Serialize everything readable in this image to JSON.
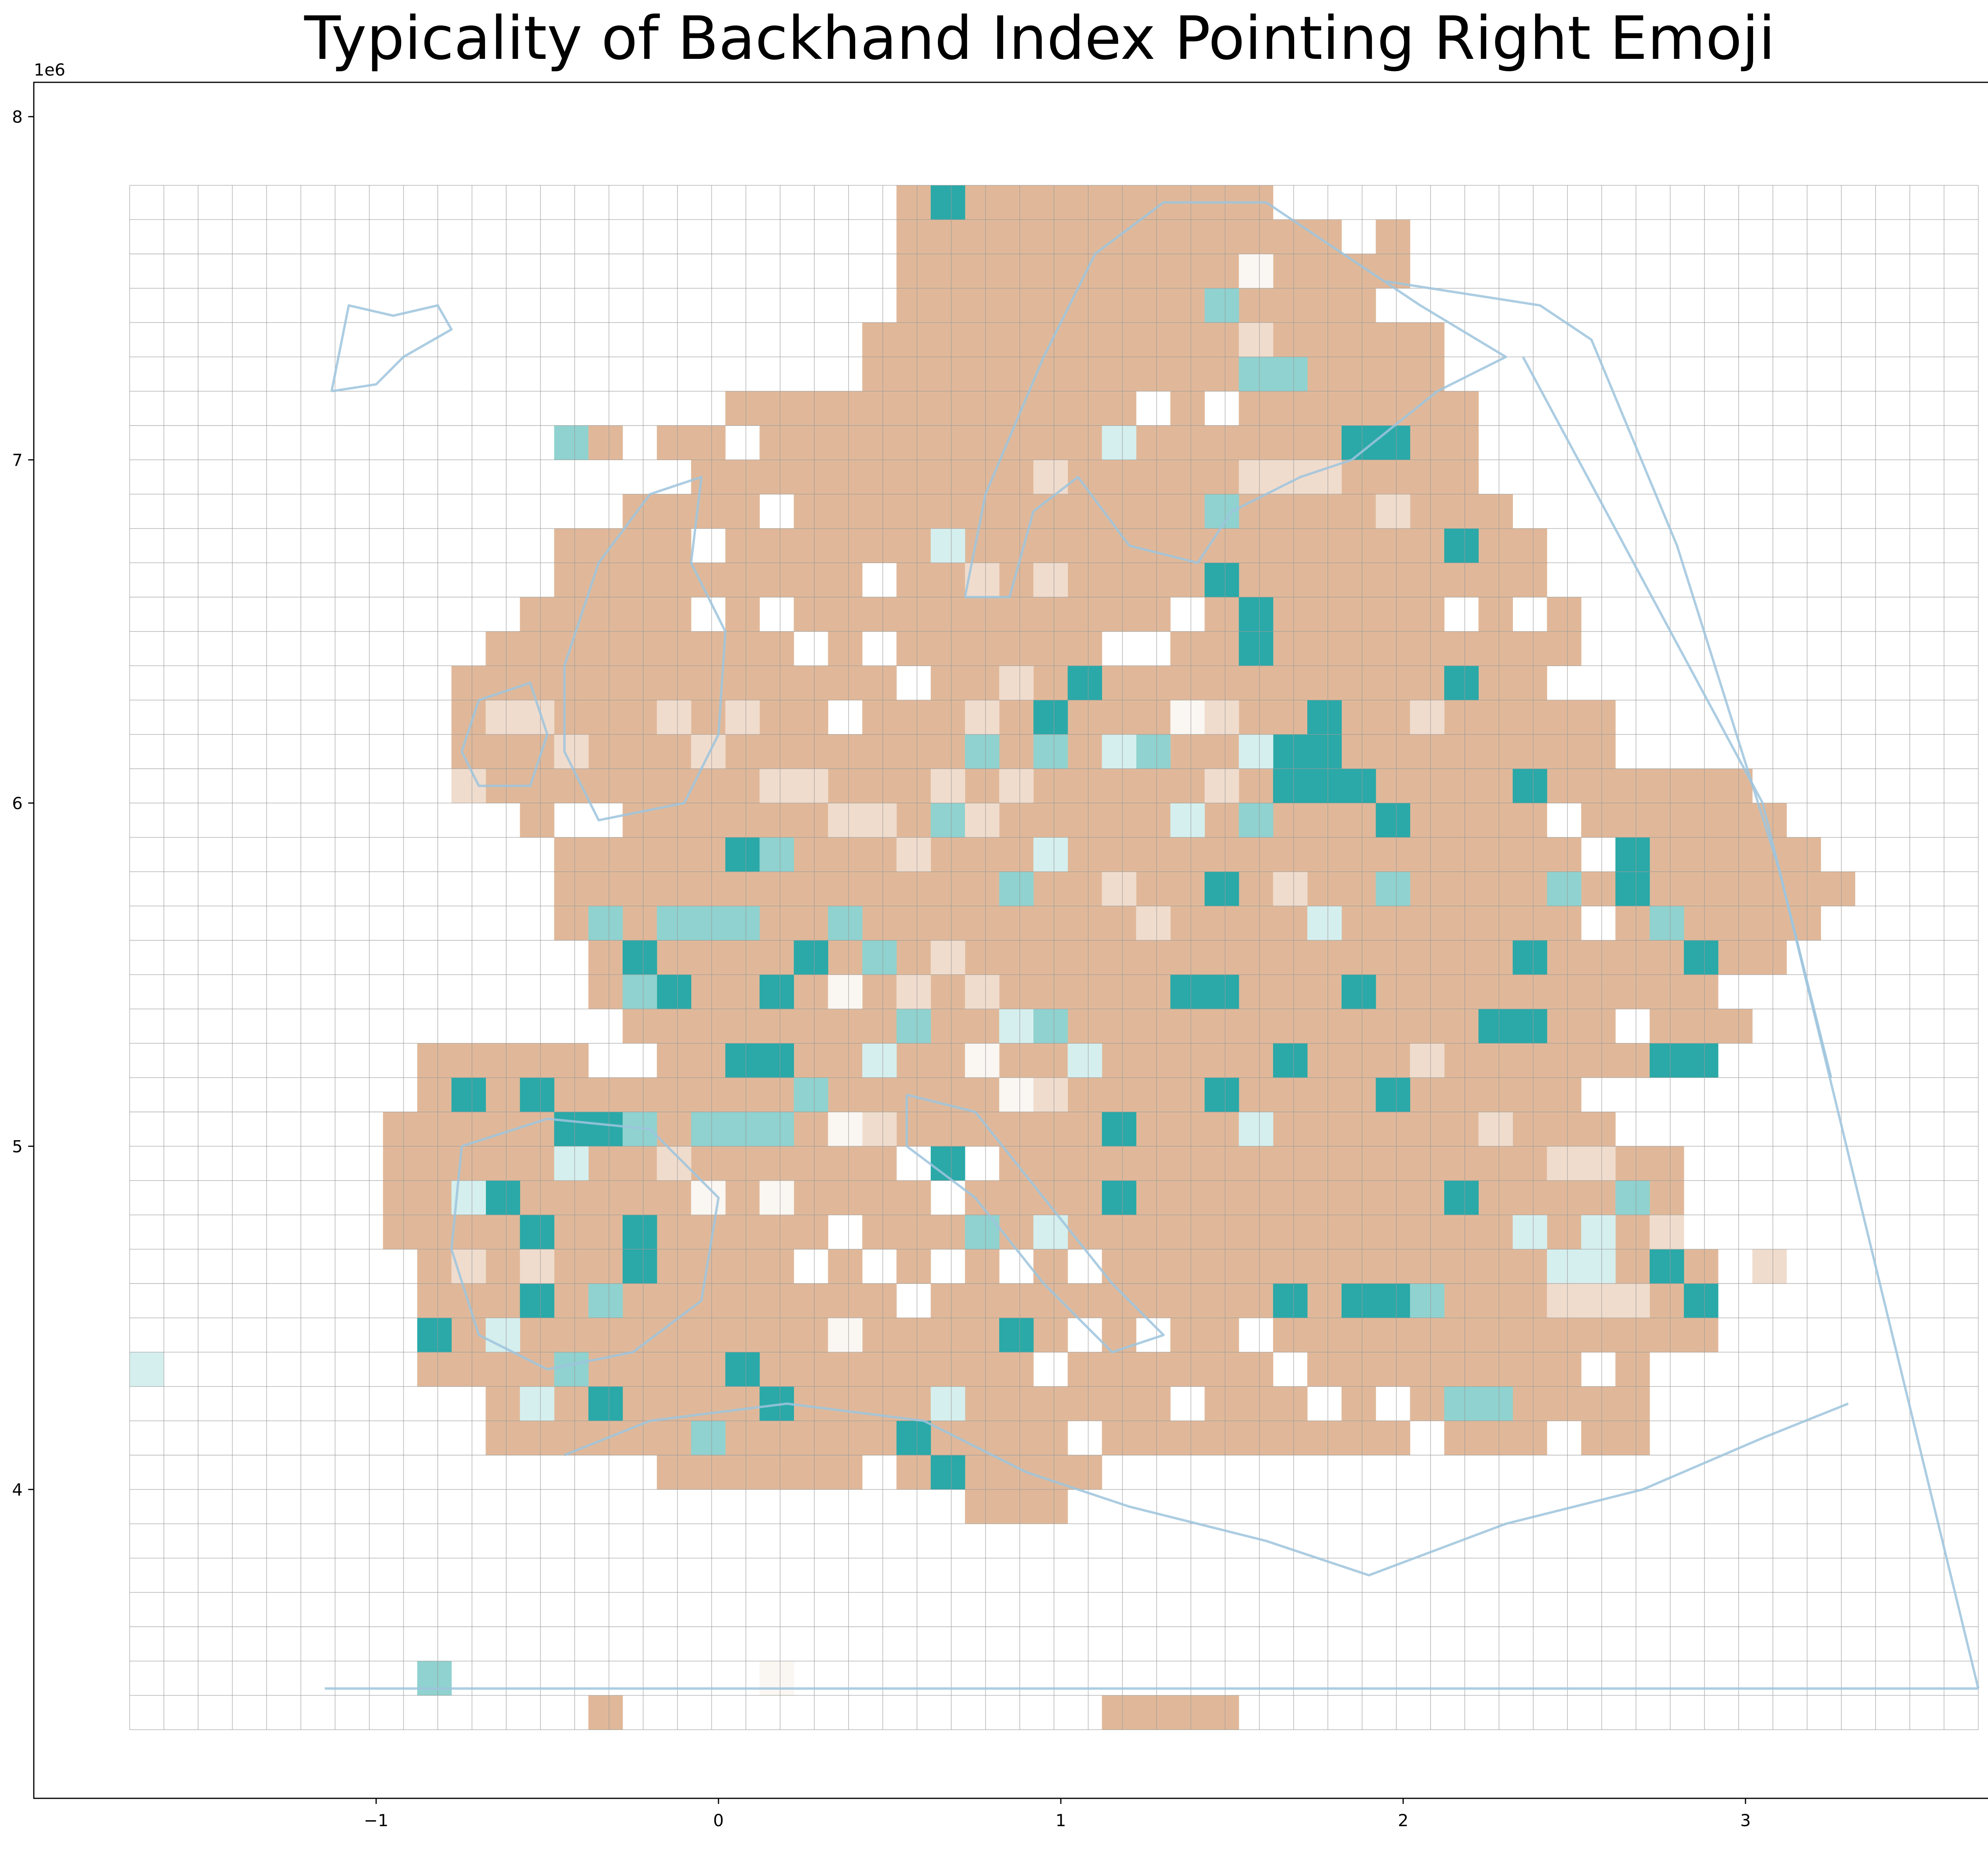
{
  "title": "Typicality of Backhand Index Pointing Right Emoji",
  "axes": {
    "x_ticks": [
      {
        "value": -1,
        "label": "−1"
      },
      {
        "value": 0,
        "label": "0"
      },
      {
        "value": 1,
        "label": "1"
      },
      {
        "value": 2,
        "label": "2"
      },
      {
        "value": 3,
        "label": "3"
      }
    ],
    "y_ticks": [
      {
        "value": 4,
        "label": "4"
      },
      {
        "value": 5,
        "label": "5"
      },
      {
        "value": 6,
        "label": "6"
      },
      {
        "value": 7,
        "label": "7"
      },
      {
        "value": 8,
        "label": "8"
      }
    ],
    "x_offset_label": "1e6",
    "y_offset_label": "1e6",
    "xlim": [
      -2.0,
      3.9
    ],
    "ylim": [
      3.1,
      8.1
    ]
  },
  "colors": {
    "high_typicality": "#2aa9a8",
    "mid_teal": "#8fd2cf",
    "light_teal": "#d5efee",
    "neutral": "#faf6f2",
    "light_tan": "#f0dccd",
    "low_typicality": "#e0b899",
    "grid": "#9a9a9a",
    "coastline": "#9ec4dd",
    "border": "#6a9ec4"
  },
  "chart_data": {
    "type": "heatmap",
    "title": "Typicality of Backhand Index Pointing Right Emoji",
    "cell_size": 0.1,
    "grid_extent": {
      "x": [
        -1.72,
        3.68
      ],
      "y": [
        3.3,
        7.8
      ]
    },
    "color_scale": [
      "#e0b899",
      "#f0dccd",
      "#faf6f2",
      "#d5efee",
      "#8fd2cf",
      "#2aa9a8"
    ],
    "cells": [
      {
        "x": 0.62,
        "y": 7.7,
        "v": 0.8
      },
      {
        "x": 0.92,
        "y": 7.6,
        "v": -1
      },
      {
        "x": 1.22,
        "y": 7.6,
        "v": -1
      },
      {
        "x": 1.52,
        "y": 7.5,
        "v": 0
      },
      {
        "x": 0.72,
        "y": 7.4,
        "v": -1
      },
      {
        "x": 1.02,
        "y": 7.3,
        "v": -1
      },
      {
        "x": 1.42,
        "y": 7.4,
        "v": 0.6
      },
      {
        "x": 1.52,
        "y": 7.3,
        "v": -0.3
      },
      {
        "x": 1.62,
        "y": 7.2,
        "v": 0.5
      },
      {
        "x": 1.52,
        "y": 7.2,
        "v": 0.5
      },
      {
        "x": 0.12,
        "y": 7.1,
        "v": -1
      },
      {
        "x": 0.52,
        "y": 7.0,
        "v": -1
      },
      {
        "x": 1.12,
        "y": 7.0,
        "v": 0.3
      },
      {
        "x": 1.92,
        "y": 7.0,
        "v": 1
      },
      {
        "x": 1.82,
        "y": 7.0,
        "v": 0.8
      },
      {
        "x": 0.92,
        "y": 6.9,
        "v": -0.5
      },
      {
        "x": -0.48,
        "y": 7.0,
        "v": 0.6
      },
      {
        "x": -0.38,
        "y": 7.0,
        "v": -1
      },
      {
        "x": -0.08,
        "y": 6.9,
        "v": -1
      },
      {
        "x": 1.42,
        "y": 6.8,
        "v": 0.6
      },
      {
        "x": 0.62,
        "y": 6.7,
        "v": 0.3
      },
      {
        "x": 2.12,
        "y": 6.7,
        "v": 0.8
      },
      {
        "x": 1.42,
        "y": 6.6,
        "v": 1
      },
      {
        "x": 1.52,
        "y": 6.5,
        "v": 1
      },
      {
        "x": 1.52,
        "y": 6.4,
        "v": 1
      },
      {
        "x": 2.12,
        "y": 6.3,
        "v": 1
      },
      {
        "x": 1.02,
        "y": 6.3,
        "v": 0.8
      },
      {
        "x": 0.92,
        "y": 6.2,
        "v": 0.8
      },
      {
        "x": 1.72,
        "y": 6.2,
        "v": 1
      },
      {
        "x": 1.62,
        "y": 6.1,
        "v": 1
      },
      {
        "x": 1.72,
        "y": 6.1,
        "v": 1
      },
      {
        "x": 1.62,
        "y": 6.0,
        "v": 1
      },
      {
        "x": 1.72,
        "y": 6.0,
        "v": 0.8
      },
      {
        "x": 2.32,
        "y": 6.0,
        "v": 0.8
      },
      {
        "x": 1.92,
        "y": 5.9,
        "v": 1
      },
      {
        "x": 0.02,
        "y": 5.8,
        "v": 0.8
      },
      {
        "x": 0.12,
        "y": 5.8,
        "v": 0.7
      },
      {
        "x": 2.62,
        "y": 5.8,
        "v": 1
      },
      {
        "x": 2.62,
        "y": 5.7,
        "v": 1
      },
      {
        "x": 1.42,
        "y": 5.7,
        "v": 1
      },
      {
        "x": -0.28,
        "y": 5.5,
        "v": 1
      },
      {
        "x": 0.22,
        "y": 5.5,
        "v": 0.8
      },
      {
        "x": 2.32,
        "y": 5.5,
        "v": 1
      },
      {
        "x": 2.82,
        "y": 5.5,
        "v": 1
      },
      {
        "x": -0.18,
        "y": 5.4,
        "v": 1
      },
      {
        "x": 0.12,
        "y": 5.4,
        "v": 1
      },
      {
        "x": 1.32,
        "y": 5.4,
        "v": 1
      },
      {
        "x": 1.42,
        "y": 5.4,
        "v": 1
      },
      {
        "x": 1.82,
        "y": 5.4,
        "v": 1
      },
      {
        "x": 2.22,
        "y": 5.3,
        "v": 1
      },
      {
        "x": 2.32,
        "y": 5.3,
        "v": 1
      },
      {
        "x": 2.72,
        "y": 5.2,
        "v": 1
      },
      {
        "x": 2.82,
        "y": 5.2,
        "v": 1
      },
      {
        "x": 1.42,
        "y": 5.1,
        "v": 1
      },
      {
        "x": 1.92,
        "y": 5.1,
        "v": 1
      },
      {
        "x": 1.12,
        "y": 5.0,
        "v": 1
      },
      {
        "x": 2.22,
        "y": 5.0,
        "v": 1
      },
      {
        "x": 0.62,
        "y": 4.9,
        "v": 1
      },
      {
        "x": 1.12,
        "y": 4.8,
        "v": 1
      },
      {
        "x": 2.72,
        "y": 4.6,
        "v": 1
      },
      {
        "x": 2.82,
        "y": 4.5,
        "v": 1
      },
      {
        "x": -0.88,
        "y": 4.4,
        "v": 1
      },
      {
        "x": 0.82,
        "y": 4.4,
        "v": 1
      },
      {
        "x": -0.38,
        "y": 4.2,
        "v": 1
      },
      {
        "x": 0.12,
        "y": 4.2,
        "v": 1
      },
      {
        "x": 0.52,
        "y": 4.1,
        "v": 1
      },
      {
        "x": 0.62,
        "y": 4.0,
        "v": 1
      },
      {
        "x": -0.88,
        "y": 3.4,
        "v": 0.6
      },
      {
        "x": -1.72,
        "y": 4.3,
        "v": 0.3
      },
      {
        "x": 0.12,
        "y": 3.4,
        "v": -0.1
      },
      {
        "x": -0.38,
        "y": 3.3,
        "v": -1
      },
      {
        "x": 1.12,
        "y": 3.3,
        "v": -1
      },
      {
        "x": 1.22,
        "y": 3.3,
        "v": -1
      },
      {
        "x": 1.32,
        "y": 3.3,
        "v": -1
      },
      {
        "x": 1.42,
        "y": 3.3,
        "v": -1
      },
      {
        "x": -0.78,
        "y": 5.1,
        "v": 0.8
      },
      {
        "x": -0.58,
        "y": 5.1,
        "v": 0.8
      },
      {
        "x": -0.48,
        "y": 5.0,
        "v": 1
      },
      {
        "x": -0.38,
        "y": 5.0,
        "v": 0.8
      },
      {
        "x": -0.28,
        "y": 5.0,
        "v": 0.6
      },
      {
        "x": -0.08,
        "y": 5.0,
        "v": 0.7
      },
      {
        "x": 0.02,
        "y": 5.0,
        "v": 0.7
      },
      {
        "x": 0.12,
        "y": 5.0,
        "v": 0.7
      },
      {
        "x": -0.68,
        "y": 4.8,
        "v": 1
      },
      {
        "x": -0.58,
        "y": 4.7,
        "v": 0.9
      },
      {
        "x": -0.28,
        "y": 4.7,
        "v": 0.8
      },
      {
        "x": -0.28,
        "y": 4.6,
        "v": 0.8
      },
      {
        "x": -0.58,
        "y": 4.5,
        "v": 1
      },
      {
        "x": -0.38,
        "y": 4.5,
        "v": 0.6
      },
      {
        "x": 0.02,
        "y": 5.2,
        "v": 0.8
      },
      {
        "x": 0.12,
        "y": 5.2,
        "v": 0.8
      },
      {
        "x": 0.22,
        "y": 5.1,
        "v": 0.7
      },
      {
        "x": -0.08,
        "y": 5.6,
        "v": 0.6
      },
      {
        "x": 0.02,
        "y": 5.6,
        "v": 0.5
      },
      {
        "x": 0.32,
        "y": 5.6,
        "v": 0.6
      },
      {
        "x": 0.42,
        "y": 5.5,
        "v": 0.6
      },
      {
        "x": 0.52,
        "y": 5.3,
        "v": 0.5
      },
      {
        "x": 0.42,
        "y": 5.2,
        "v": 0.3
      },
      {
        "x": -0.38,
        "y": 5.6,
        "v": 0.7
      },
      {
        "x": -0.18,
        "y": 5.6,
        "v": 0.5
      },
      {
        "x": 1.52,
        "y": 5.0,
        "v": 0.3
      },
      {
        "x": 1.62,
        "y": 5.2,
        "v": 0.8
      },
      {
        "x": 1.62,
        "y": 4.5,
        "v": 0.8
      },
      {
        "x": 1.92,
        "y": 4.5,
        "v": 1
      },
      {
        "x": 1.82,
        "y": 4.5,
        "v": 1
      },
      {
        "x": 2.02,
        "y": 4.5,
        "v": 0.6
      },
      {
        "x": 2.12,
        "y": 4.2,
        "v": 0.6
      },
      {
        "x": 2.22,
        "y": 4.2,
        "v": 0.5
      },
      {
        "x": 0.72,
        "y": 4.7,
        "v": 0.5
      },
      {
        "x": 0.92,
        "y": 4.7,
        "v": 0.3
      },
      {
        "x": 0.62,
        "y": 4.2,
        "v": 0.2
      },
      {
        "x": -0.08,
        "y": 4.1,
        "v": 0.5
      },
      {
        "x": 0.02,
        "y": 4.3,
        "v": 0.8
      },
      {
        "x": -0.28,
        "y": 5.4,
        "v": 0.5
      },
      {
        "x": 2.42,
        "y": 4.6,
        "v": 0.3
      },
      {
        "x": 2.52,
        "y": 4.6,
        "v": 0.2
      },
      {
        "x": 2.62,
        "y": 4.8,
        "v": 0.5
      },
      {
        "x": 2.52,
        "y": 4.7,
        "v": 0.4
      },
      {
        "x": 2.32,
        "y": 4.7,
        "v": 0.3
      },
      {
        "x": 2.12,
        "y": 4.8,
        "v": 0.8
      },
      {
        "x": 1.72,
        "y": 5.6,
        "v": 0.4
      },
      {
        "x": 1.92,
        "y": 5.7,
        "v": 0.6
      },
      {
        "x": 2.42,
        "y": 5.7,
        "v": 0.6
      },
      {
        "x": 2.72,
        "y": 5.6,
        "v": 0.6
      },
      {
        "x": 1.82,
        "y": 6.0,
        "v": 0.8
      },
      {
        "x": 1.22,
        "y": 6.1,
        "v": 0.6
      },
      {
        "x": 1.12,
        "y": 6.1,
        "v": 0.3
      },
      {
        "x": 0.72,
        "y": 6.1,
        "v": 0.6
      },
      {
        "x": 0.92,
        "y": 6.1,
        "v": 0.7
      },
      {
        "x": 0.62,
        "y": 5.9,
        "v": 0.5
      },
      {
        "x": 0.82,
        "y": 5.7,
        "v": 0.6
      },
      {
        "x": 0.92,
        "y": 5.8,
        "v": 0.4
      },
      {
        "x": 1.32,
        "y": 5.9,
        "v": 0.3
      },
      {
        "x": 1.52,
        "y": 5.9,
        "v": 0.7
      },
      {
        "x": 1.62,
        "y": 5.7,
        "v": -0.3
      },
      {
        "x": 1.52,
        "y": 6.1,
        "v": 0.3
      },
      {
        "x": 0.32,
        "y": 5.4,
        "v": 0.1
      },
      {
        "x": 0.82,
        "y": 5.3,
        "v": 0.3
      },
      {
        "x": 0.92,
        "y": 5.3,
        "v": 0.6
      },
      {
        "x": 1.02,
        "y": 5.2,
        "v": 0.4
      },
      {
        "x": 0.72,
        "y": 5.2,
        "v": 0.1
      },
      {
        "x": -0.48,
        "y": 4.9,
        "v": 0.2
      },
      {
        "x": -0.78,
        "y": 4.8,
        "v": 0.3
      },
      {
        "x": -0.68,
        "y": 4.4,
        "v": 0.3
      },
      {
        "x": -0.48,
        "y": 4.3,
        "v": 0.5
      },
      {
        "x": -0.58,
        "y": 4.2,
        "v": 0.2
      },
      {
        "x": -0.18,
        "y": 4.9,
        "v": -0.5
      },
      {
        "x": -0.08,
        "y": 4.8,
        "v": 0.1
      },
      {
        "x": 0.12,
        "y": 4.8,
        "v": -0.1
      },
      {
        "x": -0.78,
        "y": 4.6,
        "v": -0.3
      },
      {
        "x": -0.58,
        "y": 4.6,
        "v": -0.2
      },
      {
        "x": 0.32,
        "y": 4.4,
        "v": -0.1
      },
      {
        "x": 0.42,
        "y": 5.0,
        "v": -0.3
      },
      {
        "x": 0.32,
        "y": 5.0,
        "v": -0.1
      },
      {
        "x": 0.52,
        "y": 5.4,
        "v": -0.2
      },
      {
        "x": 0.62,
        "y": 5.5,
        "v": -0.3
      },
      {
        "x": 0.72,
        "y": 5.4,
        "v": -0.2
      },
      {
        "x": 0.82,
        "y": 5.1,
        "v": -0.1
      },
      {
        "x": 0.92,
        "y": 5.1,
        "v": -0.2
      },
      {
        "x": 1.22,
        "y": 5.6,
        "v": -0.3
      },
      {
        "x": 1.12,
        "y": 5.7,
        "v": -0.2
      },
      {
        "x": 0.72,
        "y": 5.9,
        "v": -0.3
      },
      {
        "x": 0.82,
        "y": 6.0,
        "v": -0.3
      },
      {
        "x": 0.62,
        "y": 6.0,
        "v": -0.3
      },
      {
        "x": 1.42,
        "y": 6.0,
        "v": -0.2
      },
      {
        "x": 1.32,
        "y": 6.2,
        "v": -0.1
      },
      {
        "x": 1.42,
        "y": 6.2,
        "v": -0.3
      },
      {
        "x": 0.72,
        "y": 6.2,
        "v": -0.2
      },
      {
        "x": 0.82,
        "y": 6.3,
        "v": -0.3
      },
      {
        "x": 0.52,
        "y": 5.8,
        "v": -0.2
      },
      {
        "x": 0.42,
        "y": 5.9,
        "v": -0.3
      },
      {
        "x": 0.32,
        "y": 5.9,
        "v": -0.4
      },
      {
        "x": 0.22,
        "y": 6.0,
        "v": -0.4
      },
      {
        "x": 0.12,
        "y": 6.0,
        "v": -0.4
      },
      {
        "x": -0.48,
        "y": 6.1,
        "v": -0.4
      },
      {
        "x": -0.58,
        "y": 6.2,
        "v": -0.3
      },
      {
        "x": -0.68,
        "y": 6.2,
        "v": -0.3
      },
      {
        "x": -0.78,
        "y": 6.0,
        "v": -0.4
      },
      {
        "x": -0.08,
        "y": 6.1,
        "v": -0.4
      },
      {
        "x": 0.02,
        "y": 6.2,
        "v": -0.3
      },
      {
        "x": -0.18,
        "y": 6.2,
        "v": -0.4
      },
      {
        "x": 1.62,
        "y": 6.9,
        "v": -0.3
      },
      {
        "x": 1.52,
        "y": 6.9,
        "v": -0.2
      },
      {
        "x": 1.72,
        "y": 6.9,
        "v": -0.4
      },
      {
        "x": 1.92,
        "y": 6.8,
        "v": -0.4
      },
      {
        "x": 0.92,
        "y": 6.6,
        "v": -0.3
      },
      {
        "x": 0.72,
        "y": 6.6,
        "v": -0.3
      },
      {
        "x": 2.02,
        "y": 6.2,
        "v": -0.4
      },
      {
        "x": 2.22,
        "y": 5.0,
        "v": -0.3
      },
      {
        "x": 2.42,
        "y": 4.9,
        "v": -0.3
      },
      {
        "x": 2.52,
        "y": 4.9,
        "v": -0.3
      },
      {
        "x": 2.72,
        "y": 4.7,
        "v": -0.3
      },
      {
        "x": 3.02,
        "y": 4.6,
        "v": -0.4
      },
      {
        "x": 2.62,
        "y": 4.5,
        "v": -0.3
      },
      {
        "x": 2.52,
        "y": 4.5,
        "v": -0.3
      },
      {
        "x": 2.42,
        "y": 4.5,
        "v": -0.2
      },
      {
        "x": 2.02,
        "y": 5.2,
        "v": -0.2
      }
    ],
    "fill_rule": "all other in-domain cells are low typicality (tan) unless listed as empty",
    "empty_cells": [
      {
        "x": -0.28,
        "y": 7.0
      },
      {
        "x": -0.18,
        "y": 6.9
      },
      {
        "x": 0.02,
        "y": 7.0
      },
      {
        "x": 0.12,
        "y": 6.8
      },
      {
        "x": -0.08,
        "y": 6.7
      },
      {
        "x": -0.08,
        "y": 6.5
      },
      {
        "x": 0.12,
        "y": 6.5
      },
      {
        "x": 0.42,
        "y": 6.6
      },
      {
        "x": 0.22,
        "y": 6.4
      },
      {
        "x": 0.42,
        "y": 6.4
      },
      {
        "x": 0.32,
        "y": 6.2
      },
      {
        "x": 0.52,
        "y": 6.3
      },
      {
        "x": 1.22,
        "y": 7.1
      },
      {
        "x": 1.42,
        "y": 7.1
      },
      {
        "x": 1.62,
        "y": 7.7
      },
      {
        "x": 1.92,
        "y": 7.4
      },
      {
        "x": 2.12,
        "y": 7.2
      },
      {
        "x": 1.82,
        "y": 7.6
      },
      {
        "x": 1.32,
        "y": 6.5
      },
      {
        "x": 1.22,
        "y": 6.4
      },
      {
        "x": 1.12,
        "y": 6.4
      },
      {
        "x": 2.12,
        "y": 6.5
      },
      {
        "x": 2.32,
        "y": 6.5
      },
      {
        "x": 2.42,
        "y": 6.3
      },
      {
        "x": 2.62,
        "y": 6.1
      },
      {
        "x": 2.42,
        "y": 5.9
      },
      {
        "x": 2.52,
        "y": 5.8
      },
      {
        "x": 2.92,
        "y": 6.1
      },
      {
        "x": 2.52,
        "y": 5.6
      },
      {
        "x": 2.92,
        "y": 5.4
      },
      {
        "x": 3.02,
        "y": 5.3
      },
      {
        "x": 2.62,
        "y": 5.3
      },
      {
        "x": -0.48,
        "y": 5.9
      },
      {
        "x": -0.38,
        "y": 5.9
      },
      {
        "x": -0.68,
        "y": 5.9
      },
      {
        "x": -0.78,
        "y": 5.8
      },
      {
        "x": -0.78,
        "y": 5.7
      },
      {
        "x": -0.68,
        "y": 5.6
      },
      {
        "x": -0.58,
        "y": 5.5
      },
      {
        "x": -0.48,
        "y": 5.4
      },
      {
        "x": -0.58,
        "y": 5.3
      },
      {
        "x": -0.68,
        "y": 5.4
      },
      {
        "x": -0.78,
        "y": 5.3
      },
      {
        "x": -0.88,
        "y": 5.4
      },
      {
        "x": -0.38,
        "y": 5.2
      },
      {
        "x": -0.28,
        "y": 5.2
      },
      {
        "x": 0.22,
        "y": 4.6
      },
      {
        "x": 0.32,
        "y": 4.7
      },
      {
        "x": 0.42,
        "y": 4.6
      },
      {
        "x": 0.52,
        "y": 4.5
      },
      {
        "x": 0.62,
        "y": 4.6
      },
      {
        "x": 0.62,
        "y": 4.8
      },
      {
        "x": 0.72,
        "y": 4.9
      },
      {
        "x": 0.52,
        "y": 4.9
      },
      {
        "x": 1.02,
        "y": 4.6
      },
      {
        "x": 0.82,
        "y": 4.6
      },
      {
        "x": 0.92,
        "y": 4.3
      },
      {
        "x": 1.02,
        "y": 4.4
      },
      {
        "x": 1.22,
        "y": 4.4
      },
      {
        "x": 1.32,
        "y": 4.2
      },
      {
        "x": 1.52,
        "y": 4.4
      },
      {
        "x": 1.62,
        "y": 4.3
      },
      {
        "x": 1.72,
        "y": 4.2
      },
      {
        "x": 1.92,
        "y": 4.2
      },
      {
        "x": 2.02,
        "y": 4.1
      },
      {
        "x": 2.52,
        "y": 4.3
      },
      {
        "x": 2.72,
        "y": 4.3
      },
      {
        "x": 2.82,
        "y": 4.1
      },
      {
        "x": 2.42,
        "y": 4.1
      },
      {
        "x": -0.28,
        "y": 4.0
      },
      {
        "x": -0.18,
        "y": 3.9
      },
      {
        "x": 0.22,
        "y": 3.9
      },
      {
        "x": 0.42,
        "y": 4.0
      },
      {
        "x": 1.02,
        "y": 4.1
      }
    ]
  }
}
